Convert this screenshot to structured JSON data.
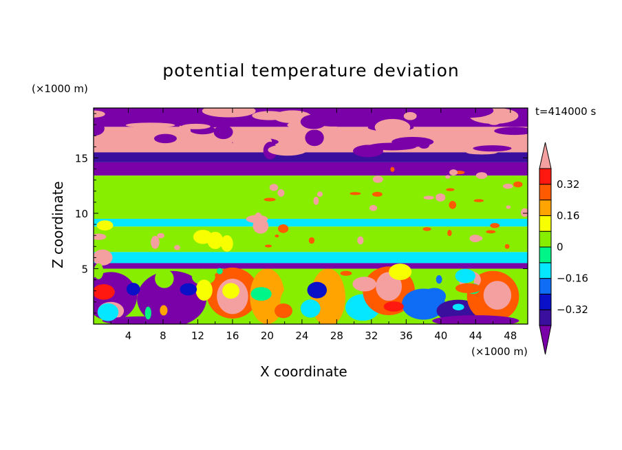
{
  "chart_data": {
    "type": "heatmap",
    "title": "potential temperature deviation",
    "xlabel": "X coordinate",
    "ylabel": "Z coordinate",
    "x_unit_label": "(×1000 m)",
    "y_unit_label": "(×1000 m)",
    "time_label": "t=414000 s",
    "xlim": [
      0,
      50
    ],
    "ylim": [
      0,
      19.5
    ],
    "x_ticks": [
      4,
      8,
      12,
      16,
      20,
      24,
      28,
      32,
      36,
      40,
      44,
      48
    ],
    "x_tick_labels": [
      "4",
      "8",
      "12",
      "16",
      "20",
      "24",
      "28",
      "32",
      "36",
      "40",
      "44",
      "48"
    ],
    "y_ticks": [
      5,
      10,
      15
    ],
    "y_tick_labels": [
      "5",
      "10",
      "15"
    ],
    "colorbar": {
      "levels": [
        -0.4,
        -0.32,
        -0.24,
        -0.16,
        -0.08,
        0,
        0.08,
        0.16,
        0.24,
        0.32,
        0.4
      ],
      "tick_values": [
        0.32,
        0.16,
        0,
        -0.16,
        -0.32
      ],
      "tick_labels": [
        "0.32",
        "0.16",
        "0",
        "−0.16",
        "−0.32"
      ],
      "colors": [
        "#7a00a8",
        "#3a0f9e",
        "#0a10c8",
        "#0f6cf5",
        "#05e6ff",
        "#00f588",
        "#88ee00",
        "#f8ff00",
        "#ffa400",
        "#ff5a00",
        "#ff1810",
        "#f4a0a0"
      ],
      "extend": "both"
    },
    "bands": [
      {
        "z_range": [
          17.8,
          19.5
        ],
        "value": -0.45
      },
      {
        "z_range": [
          15.5,
          17.8
        ],
        "value": 0.45
      },
      {
        "z_range": [
          14.6,
          15.5
        ],
        "value": -0.35
      },
      {
        "z_range": [
          13.4,
          14.6
        ],
        "value": -0.45
      },
      {
        "z_range": [
          9.5,
          13.4
        ],
        "value": 0.03
      },
      {
        "z_range": [
          8.8,
          9.5
        ],
        "value": -0.1
      },
      {
        "z_range": [
          6.5,
          8.8
        ],
        "value": 0.05
      },
      {
        "z_range": [
          5.5,
          6.5
        ],
        "value": -0.1
      },
      {
        "z_range": [
          5.0,
          5.5
        ],
        "value": -0.45
      },
      {
        "z_range": [
          0,
          5.0
        ],
        "value": 0.05
      }
    ]
  }
}
